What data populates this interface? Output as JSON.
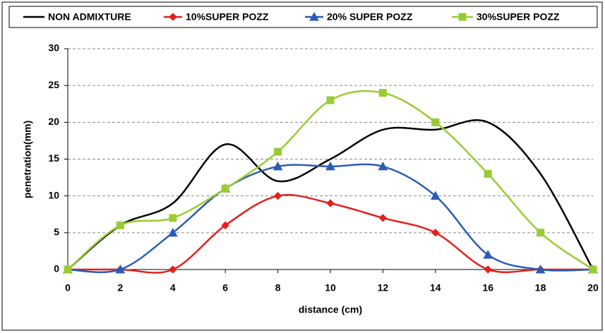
{
  "chart_data": {
    "type": "line",
    "x_label": "distance (cm)",
    "y_label": "penetration(mm)",
    "x": [
      0,
      2,
      4,
      6,
      8,
      10,
      12,
      14,
      16,
      18,
      20
    ],
    "series": [
      {
        "name": "NON ADMIXTURE",
        "color": "#000000",
        "marker": "none",
        "values": [
          0,
          6,
          9,
          17,
          12,
          15,
          19,
          19,
          20,
          13,
          0
        ]
      },
      {
        "name": "10%SUPER POZZ",
        "color": "#e3201b",
        "marker": "diamond",
        "values": [
          0,
          0,
          0,
          6,
          10,
          9,
          7,
          5,
          0,
          0,
          0
        ]
      },
      {
        "name": "20% SUPER POZZ",
        "color": "#2b5bb5",
        "marker": "triangle",
        "values": [
          0,
          0,
          5,
          11,
          14,
          14,
          14,
          10,
          2,
          0,
          0
        ]
      },
      {
        "name": "30%SUPER POZZ",
        "color": "#99cc33",
        "marker": "square",
        "values": [
          0,
          6,
          7,
          11,
          16,
          23,
          24,
          20,
          13,
          5,
          0
        ]
      }
    ],
    "xlim": [
      0,
      20
    ],
    "xticks": [
      0,
      2,
      4,
      6,
      8,
      10,
      12,
      14,
      16,
      18,
      20
    ],
    "ylim": [
      0,
      30
    ],
    "yticks": [
      0,
      5,
      10,
      15,
      20,
      25,
      30
    ],
    "grid": true,
    "smooth": true,
    "legend": "top"
  }
}
